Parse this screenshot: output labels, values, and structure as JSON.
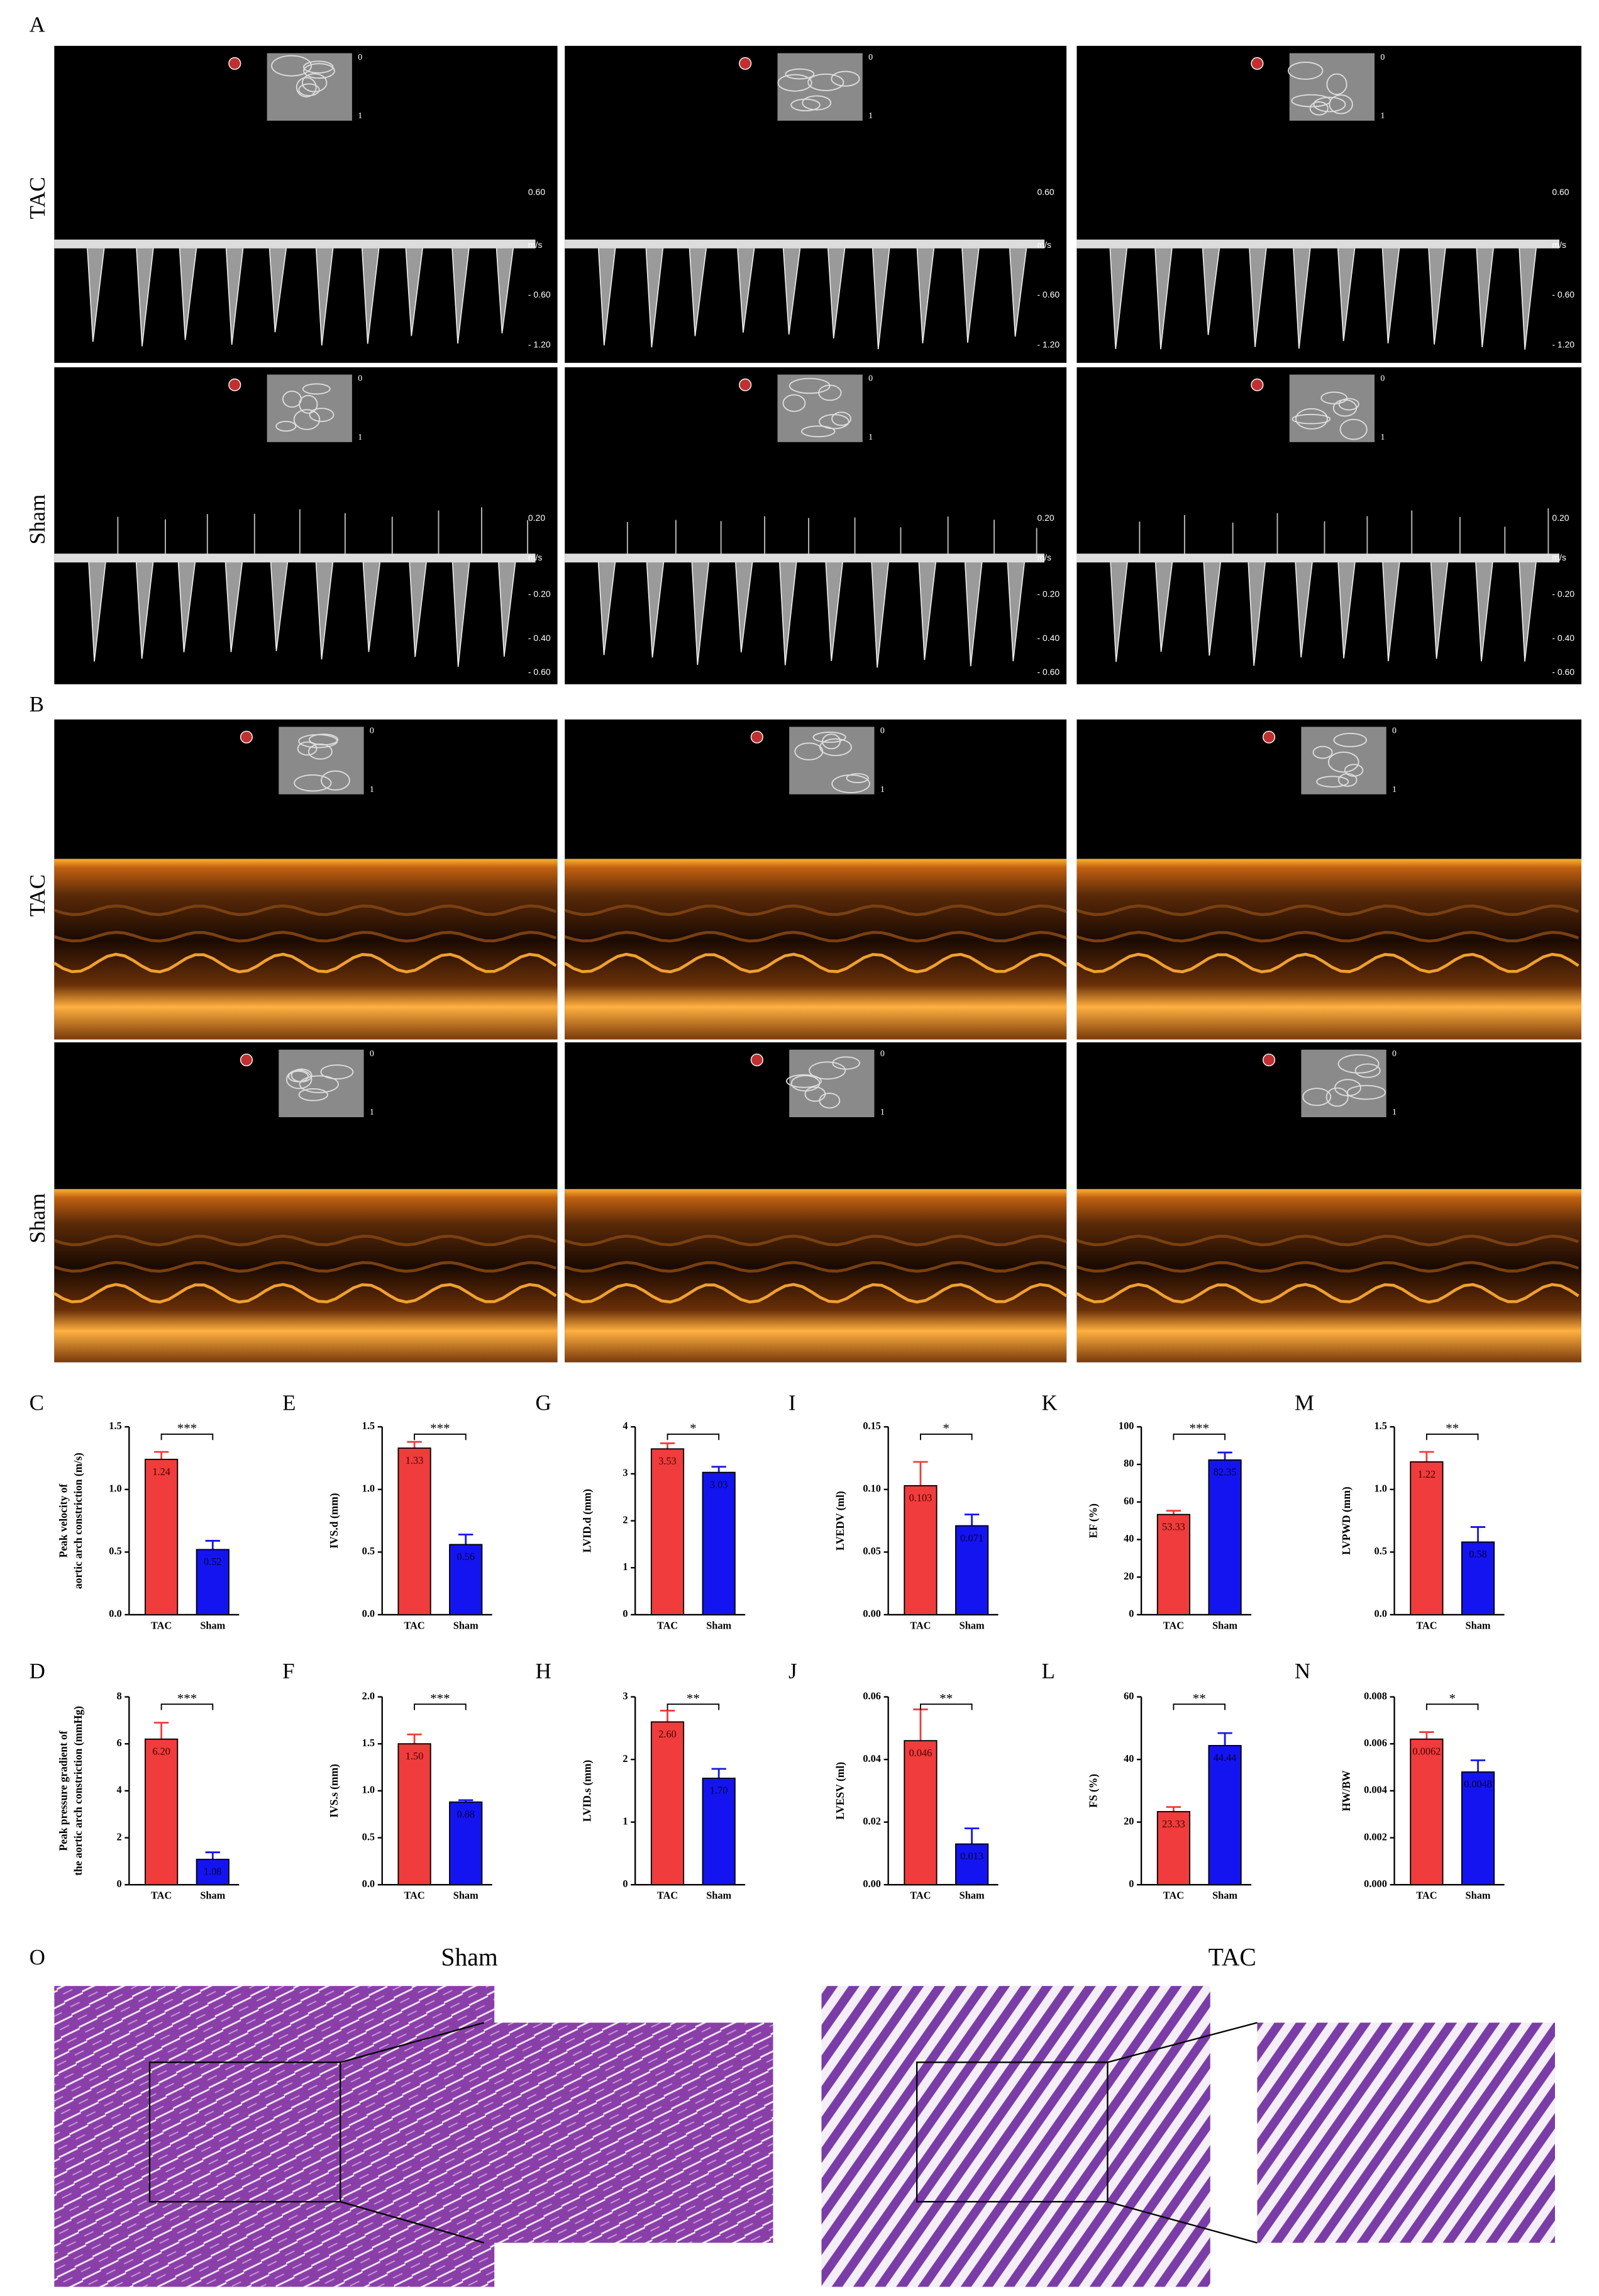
{
  "panel_labels": [
    "A",
    "B",
    "C",
    "D",
    "E",
    "F",
    "G",
    "H",
    "I",
    "J",
    "K",
    "L",
    "M",
    "N",
    "O"
  ],
  "row_labels": [
    "TAC",
    "Sham"
  ],
  "doppler": {
    "rows": [
      {
        "scale": [
          "0.60",
          "m/s",
          "- 0.60",
          "- 1.20"
        ]
      },
      {
        "scale": [
          "0.20",
          "m/s",
          "- 0.20",
          "- 0.40",
          "- 0.60"
        ]
      }
    ]
  },
  "inset_depth": [
    "0",
    "1"
  ],
  "histology": {
    "titles": [
      "Sham",
      "TAC"
    ]
  },
  "chart_data": [
    {
      "type": "bar",
      "panel": "C",
      "ylabel": [
        "Peak velocity of",
        "aortic arch constriction (m/s)"
      ],
      "categories": [
        "TAC",
        "Sham"
      ],
      "values": [
        1.24,
        0.52
      ],
      "value_labels": [
        "1.24",
        "0.52"
      ],
      "errors": [
        0.06,
        0.07
      ],
      "colors": [
        "#f03c3c",
        "#1414f0"
      ],
      "ylim": [
        0,
        1.5
      ],
      "yticks": [
        {
          "value": 0,
          "label": "0.0"
        },
        0.5,
        {
          "value": 1,
          "label": "1.0"
        },
        1.5
      ],
      "significance": "***"
    },
    {
      "type": "bar",
      "panel": "E",
      "ylabel": "IVS.d (mm)",
      "categories": [
        "TAC",
        "Sham"
      ],
      "values": [
        1.33,
        0.56
      ],
      "value_labels": [
        "1.33",
        "0.56"
      ],
      "errors": [
        0.05,
        0.08
      ],
      "colors": [
        "#f03c3c",
        "#1414f0"
      ],
      "ylim": [
        0,
        1.5
      ],
      "yticks": [
        {
          "value": 0,
          "label": "0.0"
        },
        0.5,
        {
          "value": 1,
          "label": "1.0"
        },
        1.5
      ],
      "significance": "***"
    },
    {
      "type": "bar",
      "panel": "G",
      "ylabel": "LVID.d (mm)",
      "categories": [
        "TAC",
        "Sham"
      ],
      "values": [
        3.53,
        3.03
      ],
      "value_labels": [
        "3.53",
        "3.03"
      ],
      "errors": [
        0.12,
        0.12
      ],
      "colors": [
        "#f03c3c",
        "#1414f0"
      ],
      "ylim": [
        0,
        4
      ],
      "yticks": [
        0,
        1,
        2,
        3,
        4
      ],
      "significance": "*"
    },
    {
      "type": "bar",
      "panel": "I",
      "ylabel": "LVEDV (ml)",
      "categories": [
        "TAC",
        "Sham"
      ],
      "values": [
        0.103,
        0.071
      ],
      "value_labels": [
        "0.103",
        "0.071"
      ],
      "errors": [
        0.019,
        0.009
      ],
      "colors": [
        "#f03c3c",
        "#1414f0"
      ],
      "ylim": [
        0,
        0.15
      ],
      "yticks": [
        {
          "value": 0,
          "label": "0.00"
        },
        0.05,
        {
          "value": 0.1,
          "label": "0.10"
        },
        0.15
      ],
      "significance": "*"
    },
    {
      "type": "bar",
      "panel": "K",
      "ylabel": "EF (%)",
      "categories": [
        "TAC",
        "Sham"
      ],
      "values": [
        53.33,
        82.35
      ],
      "value_labels": [
        "53.33",
        "82.35"
      ],
      "errors": [
        2,
        4
      ],
      "colors": [
        "#f03c3c",
        "#1414f0"
      ],
      "ylim": [
        0,
        100
      ],
      "yticks": [
        0,
        20,
        40,
        60,
        80,
        100
      ],
      "significance": "***"
    },
    {
      "type": "bar",
      "panel": "M",
      "ylabel": "LVPWD (mm)",
      "categories": [
        "TAC",
        "Sham"
      ],
      "values": [
        1.22,
        0.58
      ],
      "value_labels": [
        "1.22",
        "0.58"
      ],
      "errors": [
        0.08,
        0.12
      ],
      "colors": [
        "#f03c3c",
        "#1414f0"
      ],
      "ylim": [
        0,
        1.5
      ],
      "yticks": [
        {
          "value": 0,
          "label": "0.0"
        },
        0.5,
        {
          "value": 1,
          "label": "1.0"
        },
        1.5
      ],
      "significance": "**"
    },
    {
      "type": "bar",
      "panel": "D",
      "ylabel": [
        "Peak pressure gradient of",
        "the aortic arch constriction (mmHg)"
      ],
      "categories": [
        "TAC",
        "Sham"
      ],
      "values": [
        6.2,
        1.08
      ],
      "value_labels": [
        "6.20",
        "1.08"
      ],
      "errors": [
        0.7,
        0.3
      ],
      "colors": [
        "#f03c3c",
        "#1414f0"
      ],
      "ylim": [
        0,
        8
      ],
      "yticks": [
        0,
        2,
        4,
        6,
        8
      ],
      "significance": "***"
    },
    {
      "type": "bar",
      "panel": "F",
      "ylabel": "IVS.s (mm)",
      "categories": [
        "TAC",
        "Sham"
      ],
      "values": [
        1.5,
        0.88
      ],
      "value_labels": [
        "1.50",
        "0.88"
      ],
      "errors": [
        0.1,
        0.02
      ],
      "colors": [
        "#f03c3c",
        "#1414f0"
      ],
      "ylim": [
        0,
        2
      ],
      "yticks": [
        {
          "value": 0,
          "label": "0.0"
        },
        0.5,
        {
          "value": 1,
          "label": "1.0"
        },
        1.5,
        {
          "value": 2,
          "label": "2.0"
        }
      ],
      "significance": "***"
    },
    {
      "type": "bar",
      "panel": "H",
      "ylabel": "LVID.s (mm)",
      "categories": [
        "TAC",
        "Sham"
      ],
      "values": [
        2.6,
        1.7
      ],
      "value_labels": [
        "2.60",
        "1.70"
      ],
      "errors": [
        0.18,
        0.15
      ],
      "colors": [
        "#f03c3c",
        "#1414f0"
      ],
      "ylim": [
        0,
        3
      ],
      "yticks": [
        0,
        1,
        2,
        3
      ],
      "significance": "**"
    },
    {
      "type": "bar",
      "panel": "J",
      "ylabel": "LVESV (ml)",
      "categories": [
        "TAC",
        "Sham"
      ],
      "values": [
        0.046,
        0.013
      ],
      "value_labels": [
        "0.046",
        "0.013"
      ],
      "errors": [
        0.01,
        0.005
      ],
      "colors": [
        "#f03c3c",
        "#1414f0"
      ],
      "ylim": [
        0,
        0.06
      ],
      "yticks": [
        {
          "value": 0,
          "label": "0.00"
        },
        0.02,
        0.04,
        0.06
      ],
      "significance": "**"
    },
    {
      "type": "bar",
      "panel": "L",
      "ylabel": "FS (%)",
      "categories": [
        "TAC",
        "Sham"
      ],
      "values": [
        23.33,
        44.44
      ],
      "value_labels": [
        "23.33",
        "44.44"
      ],
      "errors": [
        1.5,
        4
      ],
      "colors": [
        "#f03c3c",
        "#1414f0"
      ],
      "ylim": [
        0,
        60
      ],
      "yticks": [
        0,
        20,
        40,
        60
      ],
      "significance": "**"
    },
    {
      "type": "bar",
      "panel": "N",
      "ylabel": "HW/BW",
      "categories": [
        "TAC",
        "Sham"
      ],
      "values": [
        0.0062,
        0.0048
      ],
      "value_labels": [
        "0.0062",
        "0.0048"
      ],
      "errors": [
        0.0003,
        0.0005
      ],
      "colors": [
        "#f03c3c",
        "#1414f0"
      ],
      "ylim": [
        0,
        0.008
      ],
      "yticks": [
        {
          "value": 0,
          "label": "0.000"
        },
        0.002,
        0.004,
        0.006,
        0.008
      ],
      "significance": "*"
    }
  ]
}
